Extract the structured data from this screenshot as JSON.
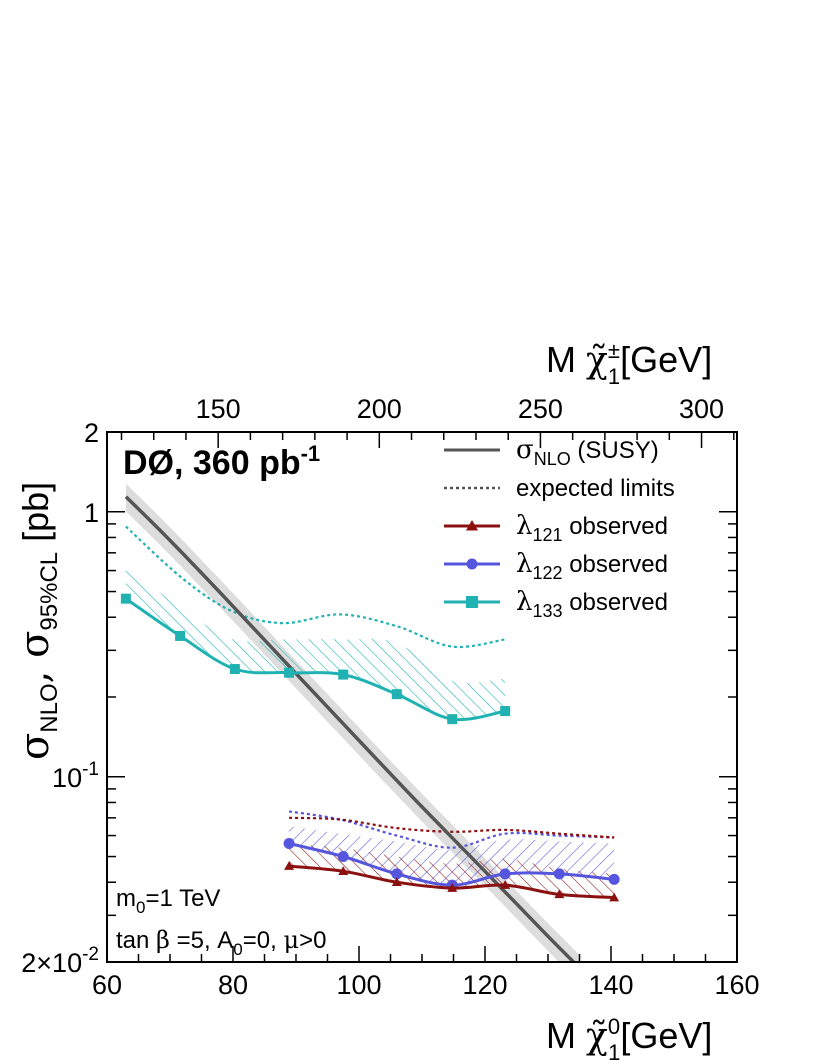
{
  "chart_data": {
    "type": "line",
    "title": "DØ, 360 pb",
    "title_sup": "-1",
    "yscale": "log",
    "xlim": [
      60,
      160
    ],
    "ylim": [
      0.02,
      2
    ],
    "xticks": [
      60,
      80,
      100,
      120,
      140,
      160
    ],
    "xtick_labels": [
      "60",
      "80",
      "100",
      "120",
      "140",
      "160"
    ],
    "x_top_lim": [
      115.5,
      311
    ],
    "x_top_ticks": [
      150,
      200,
      250,
      300
    ],
    "x_top_tick_labels": [
      "150",
      "200",
      "250",
      "300"
    ],
    "ytick_labels": [
      {
        "value": 2,
        "base": "2",
        "sup": ""
      },
      {
        "value": 1,
        "base": "1",
        "sup": ""
      },
      {
        "value": 0.1,
        "base": "10",
        "sup": "-1"
      },
      {
        "value": 0.02,
        "base": "2×10",
        "sup": "-2"
      }
    ],
    "xlabel": {
      "prefix": "M ",
      "symbol": "χ̃",
      "sup": "0",
      "sub": "1",
      "unit": "[GeV]"
    },
    "xlabel_top": {
      "prefix": "M ",
      "symbol": "χ̃",
      "sup": "±",
      "sub": "1",
      "unit": "[GeV]"
    },
    "ylabel": {
      "s1": "σ",
      "sub1": "NLO",
      "s2": ", σ",
      "sub2": "95%CL",
      "unit": " [pb]"
    },
    "legend": [
      {
        "sym": "σ",
        "sub": "NLO",
        "text": " (SUSY)",
        "color": "#555555",
        "style": "solid",
        "marker": "none"
      },
      {
        "sym": "",
        "sub": "",
        "text": "expected limits",
        "color": "#555555",
        "style": "dotted",
        "marker": "none"
      },
      {
        "sym": "λ",
        "sub": "121",
        "text": " observed",
        "color": "#8b1010",
        "style": "solid",
        "marker": "triangle"
      },
      {
        "sym": "λ",
        "sub": "122",
        "text": " observed",
        "color": "#5555dd",
        "style": "solid",
        "marker": "circle"
      },
      {
        "sym": "λ",
        "sub": "133",
        "text": " observed",
        "color": "#20b2b2",
        "style": "solid",
        "marker": "square"
      }
    ],
    "annotations": [
      {
        "parts": [
          {
            "t": "m"
          },
          {
            "t": "0",
            "sub": true
          },
          {
            "t": "=1 TeV"
          }
        ]
      },
      {
        "parts": [
          {
            "t": "tan "
          },
          {
            "t": "β",
            "greek": true
          },
          {
            "t": " =5,  A"
          },
          {
            "t": "0",
            "sub": true
          },
          {
            "t": "=0,  "
          },
          {
            "t": "μ",
            "greek": true
          },
          {
            "t": ">0"
          }
        ]
      }
    ],
    "theory": {
      "name": "σNLO (SUSY)",
      "x": [
        63,
        70,
        80,
        90,
        100,
        110,
        120,
        130,
        135
      ],
      "y": [
        1.14,
        0.78,
        0.44,
        0.245,
        0.137,
        0.077,
        0.044,
        0.025,
        0.019
      ],
      "band_rel": 0.12,
      "color": "#555555",
      "band_color": "#dddddd"
    },
    "series": [
      {
        "name": "λ133 observed",
        "color": "#20b2b2",
        "marker": "square",
        "x": [
          63,
          71.6,
          80.3,
          88.9,
          97.5,
          106,
          114.8,
          123.2
        ],
        "y": [
          0.47,
          0.34,
          0.255,
          0.247,
          0.243,
          0.205,
          0.165,
          0.177
        ],
        "expected_x": [
          63,
          72,
          80,
          88,
          97,
          106,
          114.8,
          123.2
        ],
        "expected_y": [
          0.88,
          0.56,
          0.42,
          0.38,
          0.41,
          0.37,
          0.31,
          0.33
        ],
        "hatch_top_x": [
          63,
          72,
          80,
          88,
          97,
          106,
          114.8,
          123.2
        ],
        "hatch_top_y": [
          0.62,
          0.43,
          0.33,
          0.33,
          0.33,
          0.32,
          0.23,
          0.235
        ]
      },
      {
        "name": "λ122 observed",
        "color": "#5555dd",
        "marker": "circle",
        "x": [
          88.9,
          97.5,
          106,
          114.8,
          123.2,
          131.8,
          140.5
        ],
        "y": [
          0.056,
          0.05,
          0.043,
          0.039,
          0.043,
          0.043,
          0.041
        ],
        "expected_x": [
          88.9,
          97,
          106,
          114.8,
          123.2,
          131.8,
          140.5
        ],
        "expected_y": [
          0.074,
          0.069,
          0.06,
          0.054,
          0.061,
          0.06,
          0.059
        ],
        "hatch_top_x": [
          88.9,
          97,
          106,
          114.8,
          123.2,
          131.8,
          140.5
        ],
        "hatch_top_y": [
          0.065,
          0.061,
          0.057,
          0.053,
          0.058,
          0.057,
          0.056
        ]
      },
      {
        "name": "λ121 observed",
        "color": "#8b1010",
        "marker": "triangle",
        "x": [
          88.9,
          97.5,
          106,
          114.8,
          123.2,
          131.8,
          140.5
        ],
        "y": [
          0.046,
          0.044,
          0.04,
          0.038,
          0.039,
          0.036,
          0.035
        ],
        "expected_x": [
          88.9,
          97,
          106,
          114.8,
          123.2,
          131.8,
          140.5
        ],
        "expected_y": [
          0.07,
          0.069,
          0.064,
          0.062,
          0.063,
          0.061,
          0.059
        ],
        "hatch_top_x": [
          88.9,
          97,
          106,
          114.8,
          123.2,
          131.8,
          140.5
        ],
        "hatch_top_y": [
          0.056,
          0.054,
          0.05,
          0.047,
          0.049,
          0.045,
          0.043
        ]
      }
    ]
  }
}
